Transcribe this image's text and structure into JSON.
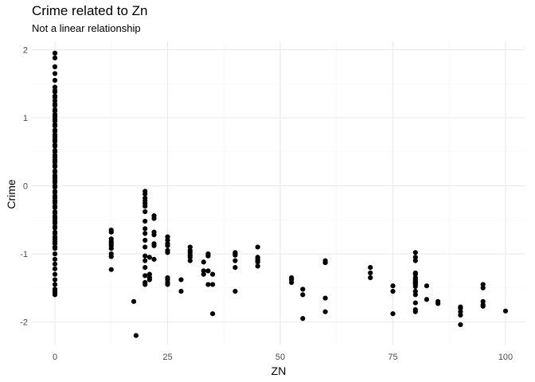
{
  "chart_data": {
    "type": "scatter",
    "title": "Crime related to Zn",
    "subtitle": "Not a linear relationship",
    "xlabel": "ZN",
    "ylabel": "Crime",
    "xlim": [
      0,
      100
    ],
    "ylim": [
      -2.2,
      1.95
    ],
    "xticks": [
      0,
      25,
      50,
      75,
      100
    ],
    "yticks": [
      -2,
      -1,
      0,
      1,
      2
    ],
    "grid": true,
    "colors": {
      "point": "#000000",
      "grid_major": "#ebebeb",
      "grid_minor": "#f4f4f4",
      "tick_text": "#4d4d4d"
    },
    "x": [
      0,
      0,
      0,
      0,
      0,
      0,
      0,
      0,
      0,
      0,
      0,
      0,
      0,
      0,
      0,
      0,
      0,
      0,
      0,
      0,
      0,
      0,
      0,
      0,
      0,
      0,
      0,
      0,
      0,
      0,
      0,
      0,
      0,
      0,
      0,
      0,
      0,
      0,
      0,
      0,
      0,
      0,
      0,
      0,
      0,
      0,
      0,
      0,
      0,
      0,
      0,
      0,
      0,
      0,
      0,
      0,
      0,
      0,
      0,
      0,
      0,
      0,
      0,
      0,
      0,
      0,
      0,
      0,
      0,
      0,
      0,
      0,
      0,
      0,
      0,
      0,
      0,
      0,
      0,
      0,
      12.5,
      12.5,
      12.5,
      12.5,
      12.5,
      12.5,
      12.5,
      12.5,
      12.5,
      12.5,
      17.5,
      18,
      20,
      20,
      20,
      20,
      20,
      20,
      20,
      20,
      20,
      20,
      20,
      20,
      20,
      20,
      20,
      20,
      20,
      20,
      21,
      21,
      21,
      21,
      22,
      22,
      22,
      22,
      22,
      22,
      22,
      25,
      25,
      25,
      25,
      25,
      25,
      25,
      25,
      25,
      25,
      28,
      28,
      30,
      30,
      30,
      30,
      30,
      30,
      33,
      33,
      33,
      34,
      34,
      34,
      34,
      35,
      35,
      35,
      40,
      40,
      40,
      40,
      40,
      40,
      45,
      45,
      45,
      45,
      45,
      45,
      52.5,
      52.5,
      52.5,
      55,
      55,
      55,
      60,
      60,
      60,
      60,
      70,
      70,
      70,
      75,
      75,
      75,
      80,
      80,
      80,
      80,
      80,
      80,
      80,
      80,
      80,
      80,
      80,
      80,
      80,
      80,
      80,
      80,
      80,
      82.5,
      82.5,
      85,
      85,
      90,
      90,
      90,
      90,
      90,
      95,
      95,
      95,
      95,
      95,
      100
    ],
    "y": [
      1.95,
      1.88,
      1.75,
      1.65,
      1.55,
      1.45,
      1.4,
      1.32,
      1.25,
      1.18,
      1.1,
      1.02,
      0.95,
      0.88,
      0.8,
      0.72,
      0.65,
      0.58,
      0.5,
      0.42,
      0.35,
      0.28,
      0.2,
      0.12,
      0.05,
      -0.02,
      -0.1,
      -0.18,
      -0.25,
      -0.32,
      -0.4,
      -0.48,
      -0.55,
      -0.62,
      -0.7,
      -0.78,
      -0.85,
      -0.92,
      -1.0,
      -1.08,
      -1.15,
      -1.22,
      -1.3,
      -1.38,
      -1.45,
      -1.52,
      -1.57,
      -1.6,
      1.38,
      1.3,
      1.2,
      1.12,
      1.05,
      0.98,
      0.9,
      0.82,
      0.75,
      0.68,
      0.6,
      0.52,
      0.45,
      0.38,
      0.3,
      0.22,
      0.15,
      0.08,
      0.0,
      -0.08,
      -0.15,
      -0.22,
      -0.3,
      -0.38,
      -0.45,
      -0.52,
      -0.6,
      -0.68,
      -0.75,
      -0.82,
      -0.9,
      -1.55,
      -0.65,
      -0.68,
      -0.78,
      -0.82,
      -0.85,
      -0.88,
      -0.92,
      -1.0,
      -1.04,
      -1.23,
      -1.7,
      -2.2,
      -0.08,
      -0.12,
      -0.18,
      -0.22,
      -0.26,
      -0.3,
      -0.38,
      -0.52,
      -0.63,
      -0.7,
      -0.8,
      -0.9,
      -1.03,
      -1.1,
      -1.2,
      -1.32,
      -1.42,
      -1.45,
      -1.05,
      -1.3,
      -1.35,
      -1.38,
      -0.44,
      -0.48,
      -0.68,
      -0.72,
      -0.85,
      -0.88,
      -1.08,
      -0.75,
      -0.8,
      -0.85,
      -0.88,
      -0.95,
      -0.98,
      -1.35,
      -1.38,
      -1.42,
      -1.45,
      -1.38,
      -1.55,
      -0.9,
      -0.95,
      -0.98,
      -1.02,
      -1.05,
      -1.1,
      -1.12,
      -1.25,
      -1.3,
      -1.0,
      -1.03,
      -1.25,
      -1.45,
      -1.3,
      -1.45,
      -1.88,
      -0.98,
      -1.0,
      -1.02,
      -1.1,
      -1.2,
      -1.55,
      -0.9,
      -1.05,
      -1.08,
      -1.1,
      -1.12,
      -1.18,
      -1.35,
      -1.38,
      -1.42,
      -1.52,
      -1.6,
      -1.95,
      -1.1,
      -1.13,
      -1.65,
      -1.85,
      -1.2,
      -1.28,
      -1.35,
      -1.47,
      -1.55,
      -1.88,
      -0.98,
      -1.05,
      -1.28,
      -1.3,
      -1.35,
      -1.38,
      -1.4,
      -1.42,
      -1.43,
      -1.45,
      -1.48,
      -1.55,
      -1.6,
      -1.72,
      -1.82,
      -1.85,
      -1.1,
      -1.47,
      -1.67,
      -1.7,
      -1.73,
      -1.78,
      -1.8,
      -1.85,
      -1.9,
      -2.04,
      -1.45,
      -1.5,
      -1.7,
      -1.75,
      -1.77,
      -1.84
    ]
  }
}
